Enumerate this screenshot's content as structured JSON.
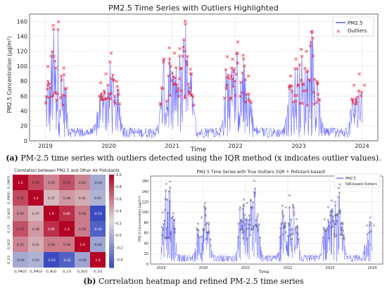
{
  "captions": {
    "a_tag": "(a)",
    "a_text": "PM-2.5 time series with outliers detected using the IQR method (x indicates outlier values).",
    "b_tag": "(b)",
    "b_text": "Correlation heatmap and refined PM-2.5 time series"
  },
  "chart_data": [
    {
      "type": "line",
      "title": "PM2.5 Time Series with Outliers Highlighted",
      "xlabel": "Time",
      "ylabel": "PM2.5 Concentration (µg/m³)",
      "xlim": [
        "2018-10",
        "2024-04"
      ],
      "ylim": [
        0,
        170
      ],
      "x_ticks": [
        "2019",
        "2020",
        "2021",
        "2022",
        "2023",
        "2024"
      ],
      "y_ticks": [
        0,
        20,
        40,
        60,
        80,
        100,
        120,
        140,
        160
      ],
      "grid": true,
      "legend_position": "top-right",
      "series": [
        {
          "name": "PM2.5",
          "style": "line",
          "color": "#5b5bff"
        },
        {
          "name": "Outliers",
          "style": "x-marker",
          "color": "#e8192c"
        }
      ],
      "outlier_threshold": 48,
      "peaks": [
        {
          "x": "2019-01",
          "y": 100
        },
        {
          "x": "2019-02",
          "y": 155
        },
        {
          "x": "2019-03",
          "y": 160
        },
        {
          "x": "2019-04",
          "y": 98
        },
        {
          "x": "2019-11",
          "y": 78
        },
        {
          "x": "2019-12",
          "y": 90
        },
        {
          "x": "2020-01",
          "y": 118
        },
        {
          "x": "2020-02",
          "y": 80
        },
        {
          "x": "2020-11",
          "y": 110
        },
        {
          "x": "2020-12",
          "y": 125
        },
        {
          "x": "2021-01",
          "y": 118
        },
        {
          "x": "2021-02",
          "y": 124
        },
        {
          "x": "2021-03",
          "y": 161
        },
        {
          "x": "2021-04",
          "y": 96
        },
        {
          "x": "2021-11",
          "y": 113
        },
        {
          "x": "2021-12",
          "y": 110
        },
        {
          "x": "2022-01",
          "y": 133
        },
        {
          "x": "2022-02",
          "y": 115
        },
        {
          "x": "2022-03",
          "y": 87
        },
        {
          "x": "2022-11",
          "y": 87
        },
        {
          "x": "2022-12",
          "y": 110
        },
        {
          "x": "2023-01",
          "y": 123
        },
        {
          "x": "2023-02",
          "y": 120
        },
        {
          "x": "2023-03",
          "y": 147
        },
        {
          "x": "2023-04",
          "y": 80
        },
        {
          "x": "2023-11",
          "y": 75
        },
        {
          "x": "2023-12",
          "y": 90
        },
        {
          "x": "2024-01",
          "y": 75
        }
      ]
    },
    {
      "type": "heatmap",
      "title": "Correlation between PM2.5 and Other Air Pollutants",
      "labels": [
        "O_PM25",
        "O_PM10",
        "O_NO2",
        "O_CO",
        "O_SO2",
        "O_O3"
      ],
      "matrix": [
        [
          1.0,
          0.76,
          0.55,
          0.73,
          0.55,
          -0.04
        ],
        [
          0.76,
          1.0,
          0.37,
          0.48,
          0.41,
          0.02
        ],
        [
          0.55,
          0.37,
          1.0,
          0.85,
          0.58,
          -0.53
        ],
        [
          0.73,
          0.48,
          0.85,
          1.0,
          0.58,
          -0.42
        ],
        [
          0.55,
          0.41,
          0.58,
          0.58,
          1.0,
          -0.06
        ],
        [
          -0.04,
          0.02,
          -0.53,
          -0.42,
          -0.06,
          1.0
        ]
      ],
      "colorbar_ticks": [
        1.0,
        0.8,
        0.6,
        0.4,
        0.2,
        0.0,
        -0.2,
        -0.4
      ],
      "vmin": -0.53,
      "vmax": 1.0,
      "colormap": "coolwarm"
    },
    {
      "type": "line",
      "title": "PM2.5 Time Series with True Outliers (IQR + Pollutant-based)",
      "xlabel": "Time",
      "ylabel": "PM2.5 Concentration (µg/m³)",
      "xlim": [
        "2018-10",
        "2024-04"
      ],
      "ylim": [
        0,
        170
      ],
      "x_ticks": [
        "2019",
        "2020",
        "2021",
        "2022",
        "2023",
        "2024"
      ],
      "y_ticks": [
        0,
        20,
        40,
        60,
        80,
        100,
        120,
        140,
        160
      ],
      "grid": true,
      "legend_position": "top-right",
      "series": [
        {
          "name": "PM2.5",
          "style": "line",
          "color": "#5b5bff"
        },
        {
          "name": "IQR-based Outliers",
          "style": "x-marker",
          "color": "#555577"
        }
      ],
      "outlier_threshold": 48,
      "peaks": [
        {
          "x": "2019-01",
          "y": 100
        },
        {
          "x": "2019-02",
          "y": 155
        },
        {
          "x": "2019-03",
          "y": 160
        },
        {
          "x": "2019-04",
          "y": 98
        },
        {
          "x": "2019-11",
          "y": 78
        },
        {
          "x": "2019-12",
          "y": 90
        },
        {
          "x": "2020-01",
          "y": 118
        },
        {
          "x": "2020-02",
          "y": 80
        },
        {
          "x": "2020-11",
          "y": 110
        },
        {
          "x": "2020-12",
          "y": 125
        },
        {
          "x": "2021-01",
          "y": 118
        },
        {
          "x": "2021-02",
          "y": 124
        },
        {
          "x": "2021-03",
          "y": 161
        },
        {
          "x": "2021-04",
          "y": 96
        },
        {
          "x": "2021-11",
          "y": 113
        },
        {
          "x": "2021-12",
          "y": 110
        },
        {
          "x": "2022-01",
          "y": 133
        },
        {
          "x": "2022-02",
          "y": 115
        },
        {
          "x": "2022-03",
          "y": 87
        },
        {
          "x": "2022-11",
          "y": 87
        },
        {
          "x": "2022-12",
          "y": 110
        },
        {
          "x": "2023-01",
          "y": 123
        },
        {
          "x": "2023-02",
          "y": 120
        },
        {
          "x": "2023-03",
          "y": 147
        },
        {
          "x": "2023-04",
          "y": 80
        },
        {
          "x": "2023-11",
          "y": 75
        },
        {
          "x": "2023-12",
          "y": 90
        },
        {
          "x": "2024-01",
          "y": 75
        }
      ]
    }
  ]
}
